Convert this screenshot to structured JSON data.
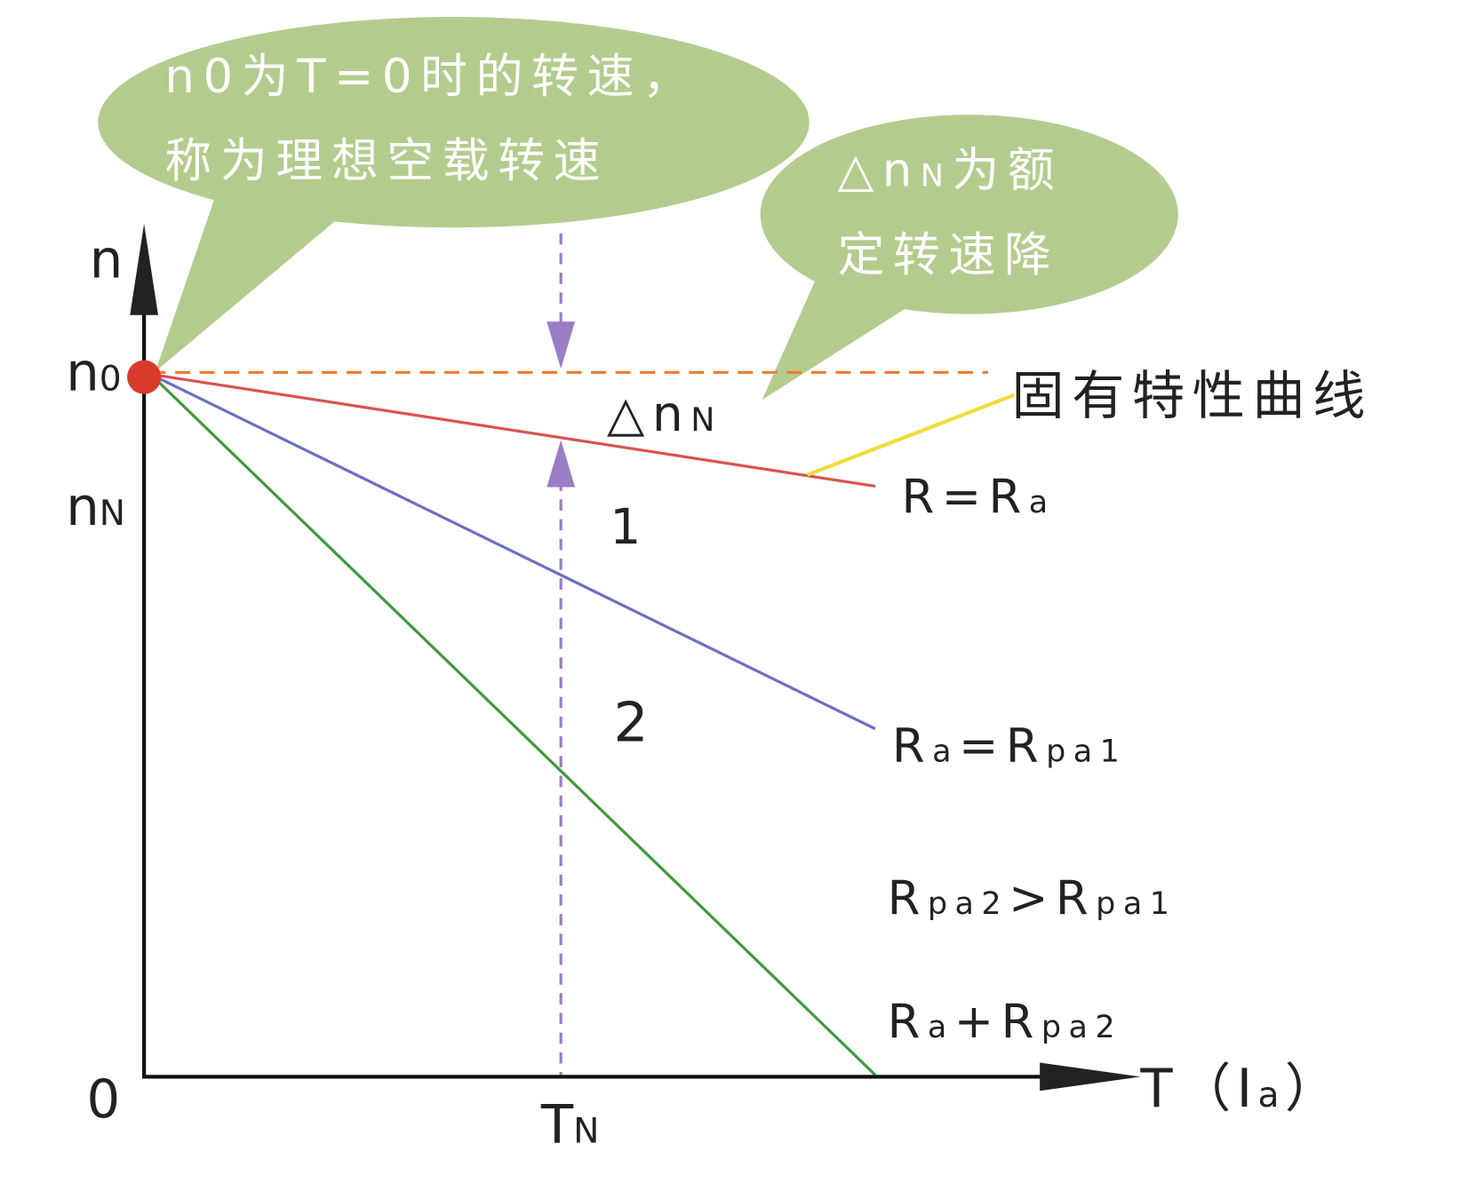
{
  "axes": {
    "y_label": [
      {
        "text": "n"
      }
    ],
    "x_label": [
      {
        "text": "T（I"
      },
      {
        "text": "a",
        "sub": true
      },
      {
        "text": "）"
      }
    ],
    "origin": [
      {
        "text": "0"
      }
    ],
    "n0": [
      {
        "text": "n"
      },
      {
        "text": "0",
        "sub": true
      }
    ],
    "nN": [
      {
        "text": "n"
      },
      {
        "text": "N",
        "sub": true
      }
    ],
    "TN": [
      {
        "text": "T"
      },
      {
        "text": "N",
        "sub": true
      }
    ]
  },
  "callouts": [
    {
      "lines": [
        [
          {
            "text": "n0为T=0时的转速，"
          }
        ],
        [
          {
            "text": "称为理想空载转速"
          }
        ]
      ]
    },
    {
      "lines": [
        [
          {
            "text": "△n"
          },
          {
            "text": "N",
            "sub": true
          },
          {
            "text": "为额"
          }
        ],
        [
          {
            "text": "定转速降"
          }
        ]
      ]
    }
  ],
  "delta_label": [
    {
      "text": "△n"
    },
    {
      "text": "N",
      "sub": true
    }
  ],
  "region_labels": [
    [
      {
        "text": "1"
      }
    ],
    [
      {
        "text": "2"
      }
    ]
  ],
  "natural_curve_label": [
    {
      "text": "固有特性曲线"
    }
  ],
  "curve_labels": [
    [
      {
        "text": "R=R"
      },
      {
        "text": "a",
        "sub": true
      }
    ],
    [
      {
        "text": "R"
      },
      {
        "text": "a",
        "sub": true
      },
      {
        "text": "=R"
      },
      {
        "text": "pa1",
        "sub": true
      }
    ],
    [
      {
        "text": "R"
      },
      {
        "text": "pa2",
        "sub": true
      },
      {
        "text": ">R"
      },
      {
        "text": "pa1",
        "sub": true
      }
    ],
    [
      {
        "text": "R"
      },
      {
        "text": "a",
        "sub": true
      },
      {
        "text": "+R"
      },
      {
        "text": "pa2",
        "sub": true
      }
    ]
  ]
}
